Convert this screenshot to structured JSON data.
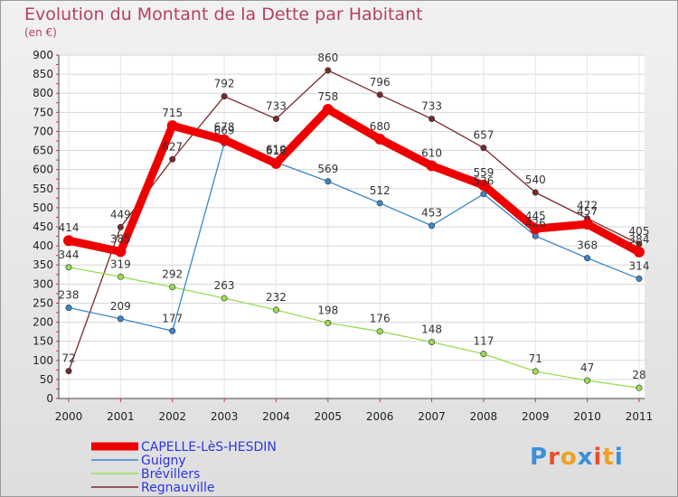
{
  "chart_data": {
    "type": "line",
    "title": "Evolution du Montant de la Dette par Habitant",
    "subtitle": "(en €)",
    "x": [
      "2000",
      "2001",
      "2002",
      "2003",
      "2004",
      "2005",
      "2006",
      "2007",
      "2008",
      "2009",
      "2010",
      "2011"
    ],
    "ylim": [
      0,
      900
    ],
    "yticks": [
      0,
      50,
      100,
      150,
      200,
      250,
      300,
      350,
      400,
      450,
      500,
      550,
      600,
      650,
      700,
      750,
      800,
      850,
      900
    ],
    "grid": true,
    "legend_position": "bottom-left",
    "series": [
      {
        "name": "CAPELLE-LèS-HESDIN",
        "color": "#ee0000",
        "values": [
          414,
          385,
          715,
          678,
          616,
          758,
          680,
          610,
          559,
          445,
          457,
          384
        ]
      },
      {
        "name": "Guigny",
        "color": "#3a86c8",
        "values": [
          238,
          209,
          177,
          669,
          619,
          569,
          512,
          453,
          536,
          426,
          368,
          314
        ]
      },
      {
        "name": "Brévillers",
        "color": "#99dd55",
        "values": [
          344,
          319,
          292,
          263,
          232,
          198,
          176,
          148,
          117,
          71,
          47,
          28
        ]
      },
      {
        "name": "Regnauville",
        "color": "#7a2a2a",
        "values": [
          72,
          449,
          627,
          792,
          733,
          860,
          796,
          733,
          657,
          540,
          472,
          405
        ]
      }
    ]
  },
  "logo": {
    "letters": [
      "P",
      "r",
      "o",
      "x",
      "i",
      "t",
      "i"
    ],
    "colors": [
      "#3a8fd8",
      "#e8502a",
      "#f0a020",
      "#3a8fd8",
      "#e8502a",
      "#f0a020",
      "#3a8fd8"
    ]
  }
}
